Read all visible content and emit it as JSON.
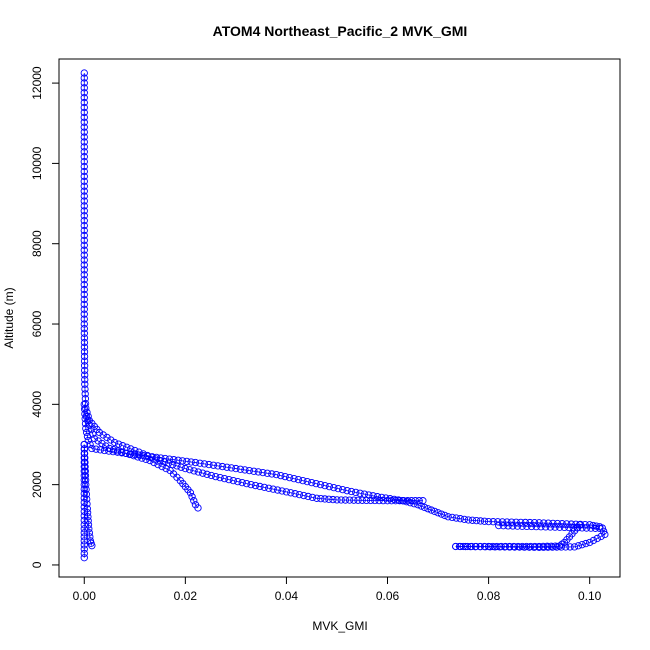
{
  "chart_data": {
    "type": "scatter",
    "title": "ATOM4 Northeast_Pacific_2 MVK_GMI",
    "xlabel": "MVK_GMI",
    "ylabel": "Altitude (m)",
    "xlim": [
      -0.005,
      0.106
    ],
    "ylim": [
      -300,
      12600
    ],
    "xticks": [
      0.0,
      0.02,
      0.04,
      0.06,
      0.08,
      0.1
    ],
    "xtick_labels": [
      "0.00",
      "0.02",
      "0.04",
      "0.06",
      "0.08",
      "0.10"
    ],
    "yticks": [
      0,
      2000,
      4000,
      6000,
      8000,
      10000,
      12000
    ],
    "ytick_labels": [
      "0",
      "2000",
      "4000",
      "6000",
      "8000",
      "10000",
      "12000"
    ],
    "grid": false,
    "legend": "none",
    "series": [
      {
        "style": "points+line",
        "color": "#0000ff",
        "segments": [
          [
            [
              0.0,
              12250
            ],
            [
              0.0,
              6000
            ],
            [
              0.0001,
              4500
            ],
            [
              0.0003,
              3900
            ],
            [
              0.001,
              3600
            ],
            [
              0.003,
              3300
            ],
            [
              0.006,
              3050
            ],
            [
              0.01,
              2850
            ],
            [
              0.015,
              2600
            ],
            [
              0.02,
              2400
            ],
            [
              0.026,
              2200
            ],
            [
              0.033,
              2000
            ],
            [
              0.04,
              1820
            ],
            [
              0.046,
              1660
            ],
            [
              0.05,
              1620
            ],
            [
              0.055,
              1610
            ],
            [
              0.06,
              1600
            ],
            [
              0.064,
              1600
            ],
            [
              0.067,
              1600
            ]
          ],
          [
            [
              0.0004,
              3700
            ],
            [
              0.002,
              3150
            ],
            [
              0.005,
              2900
            ],
            [
              0.009,
              2750
            ],
            [
              0.013,
              2600
            ],
            [
              0.017,
              2350
            ],
            [
              0.019,
              2100
            ],
            [
              0.021,
              1800
            ],
            [
              0.022,
              1500
            ],
            [
              0.0225,
              1420
            ]
          ],
          [
            [
              0.0,
              4000
            ],
            [
              0.0003,
              3400
            ],
            [
              0.0008,
              3100
            ],
            [
              0.0015,
              2900
            ],
            [
              0.004,
              2850
            ],
            [
              0.01,
              2750
            ],
            [
              0.016,
              2650
            ],
            [
              0.022,
              2550
            ],
            [
              0.03,
              2400
            ],
            [
              0.038,
              2250
            ],
            [
              0.045,
              2050
            ],
            [
              0.052,
              1850
            ],
            [
              0.058,
              1700
            ],
            [
              0.063,
              1600
            ]
          ],
          [
            [
              0.063,
              1600
            ],
            [
              0.066,
              1500
            ],
            [
              0.068,
              1400
            ],
            [
              0.07,
              1300
            ],
            [
              0.072,
              1200
            ],
            [
              0.076,
              1120
            ],
            [
              0.08,
              1080
            ],
            [
              0.09,
              1050
            ],
            [
              0.1,
              1000
            ],
            [
              0.102,
              950
            ]
          ],
          [
            [
              0.098,
              1000
            ],
            [
              0.097,
              850
            ],
            [
              0.096,
              700
            ],
            [
              0.095,
              560
            ],
            [
              0.094,
              470
            ],
            [
              0.09,
              460
            ],
            [
              0.085,
              460
            ],
            [
              0.08,
              460
            ],
            [
              0.075,
              460
            ],
            [
              0.0735,
              460
            ]
          ],
          [
            [
              0.0735,
              460
            ],
            [
              0.09,
              440
            ],
            [
              0.097,
              450
            ],
            [
              0.1,
              560
            ],
            [
              0.103,
              760
            ],
            [
              0.1025,
              920
            ]
          ],
          [
            [
              0.082,
              980
            ],
            [
              0.095,
              935
            ],
            [
              0.102,
              910
            ]
          ],
          [
            [
              0.0,
              3000
            ],
            [
              0.0003,
              2000
            ],
            [
              0.0006,
              1400
            ],
            [
              0.0009,
              900
            ],
            [
              0.0012,
              600
            ],
            [
              0.0015,
              480
            ]
          ],
          [
            [
              0.0,
              3000
            ],
            [
              0.0,
              2000
            ],
            [
              0.0,
              1000
            ],
            [
              0.0,
              500
            ],
            [
              0.0,
              180
            ]
          ]
        ]
      }
    ]
  }
}
